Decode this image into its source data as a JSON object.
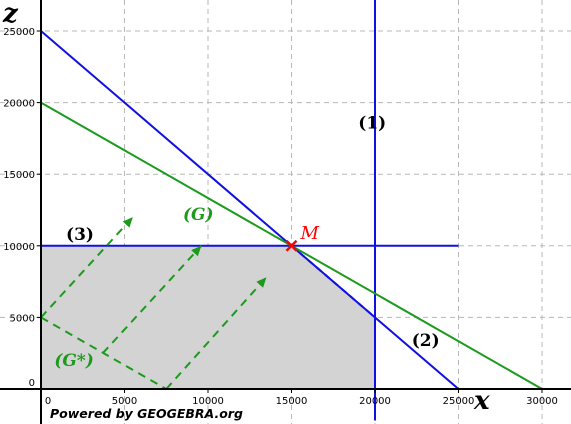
{
  "footer": "Powered by GEOGEBRA.org",
  "chart_data": {
    "type": "line",
    "title": "",
    "xlabel": "x",
    "ylabel": "z",
    "xlim": [
      -500,
      31500
    ],
    "ylim": [
      -200,
      28800
    ],
    "grid": true,
    "x_ticks": [
      0,
      5000,
      10000,
      15000,
      20000,
      25000,
      30000
    ],
    "x_tick_labels": [
      "0",
      "5000",
      "10000",
      "15000",
      "20000",
      "25000",
      "30000"
    ],
    "y_ticks": [
      0,
      5000,
      10000,
      15000,
      20000,
      25000
    ],
    "y_tick_labels": [
      "0",
      "5000",
      "10000",
      "15000",
      "20000",
      "25000"
    ],
    "feasible_region": {
      "color": "#d3d3d3",
      "points": [
        [
          0,
          0
        ],
        [
          0,
          10000
        ],
        [
          15000,
          10000
        ],
        [
          20000,
          5000
        ],
        [
          20000,
          0
        ]
      ]
    },
    "lines": [
      {
        "label": "(1)",
        "color": "#1010e0",
        "points": [
          [
            20000,
            -2200
          ],
          [
            20000,
            28800
          ]
        ]
      },
      {
        "label": "(2)",
        "color": "#1010e0",
        "points": [
          [
            0,
            25000
          ],
          [
            25000,
            0
          ]
        ]
      },
      {
        "label": "(3)",
        "color": "#1010e0",
        "points": [
          [
            0,
            10000
          ],
          [
            25000,
            10000
          ]
        ]
      },
      {
        "label": "(G)",
        "color": "#1c9a1c",
        "points": [
          [
            0,
            20000
          ],
          [
            30000,
            0
          ]
        ]
      }
    ],
    "g_star": {
      "label": "(G*)",
      "color": "#1c9a1c",
      "points": [
        [
          0,
          5000
        ],
        [
          7500,
          0
        ]
      ]
    },
    "shift_arrows": {
      "color": "#1c9a1c",
      "arrows": [
        [
          [
            0,
            5000
          ],
          [
            5500,
            12000
          ]
        ],
        [
          [
            3700,
            2500
          ],
          [
            9600,
            10000
          ]
        ],
        [
          [
            7500,
            0
          ],
          [
            13500,
            7800
          ]
        ]
      ]
    },
    "boundary_dashes": {
      "color": "#1010e0",
      "points": [
        [
          15000,
          10000
        ],
        [
          20000,
          5000
        ],
        [
          20000,
          0
        ]
      ]
    },
    "optimum": {
      "label": "M",
      "x": 15000,
      "y": 10000,
      "color": "#ff0000"
    },
    "annotations": [
      {
        "text": "(1)",
        "x": 19000,
        "y": 18200
      },
      {
        "text": "(2)",
        "x": 22200,
        "y": 3000
      },
      {
        "text": "(3)",
        "x": 1500,
        "y": 10400
      },
      {
        "text": "(G)",
        "x": 8500,
        "y": 11800
      },
      {
        "text": "(G*)",
        "x": 800,
        "y": 1600
      }
    ]
  }
}
